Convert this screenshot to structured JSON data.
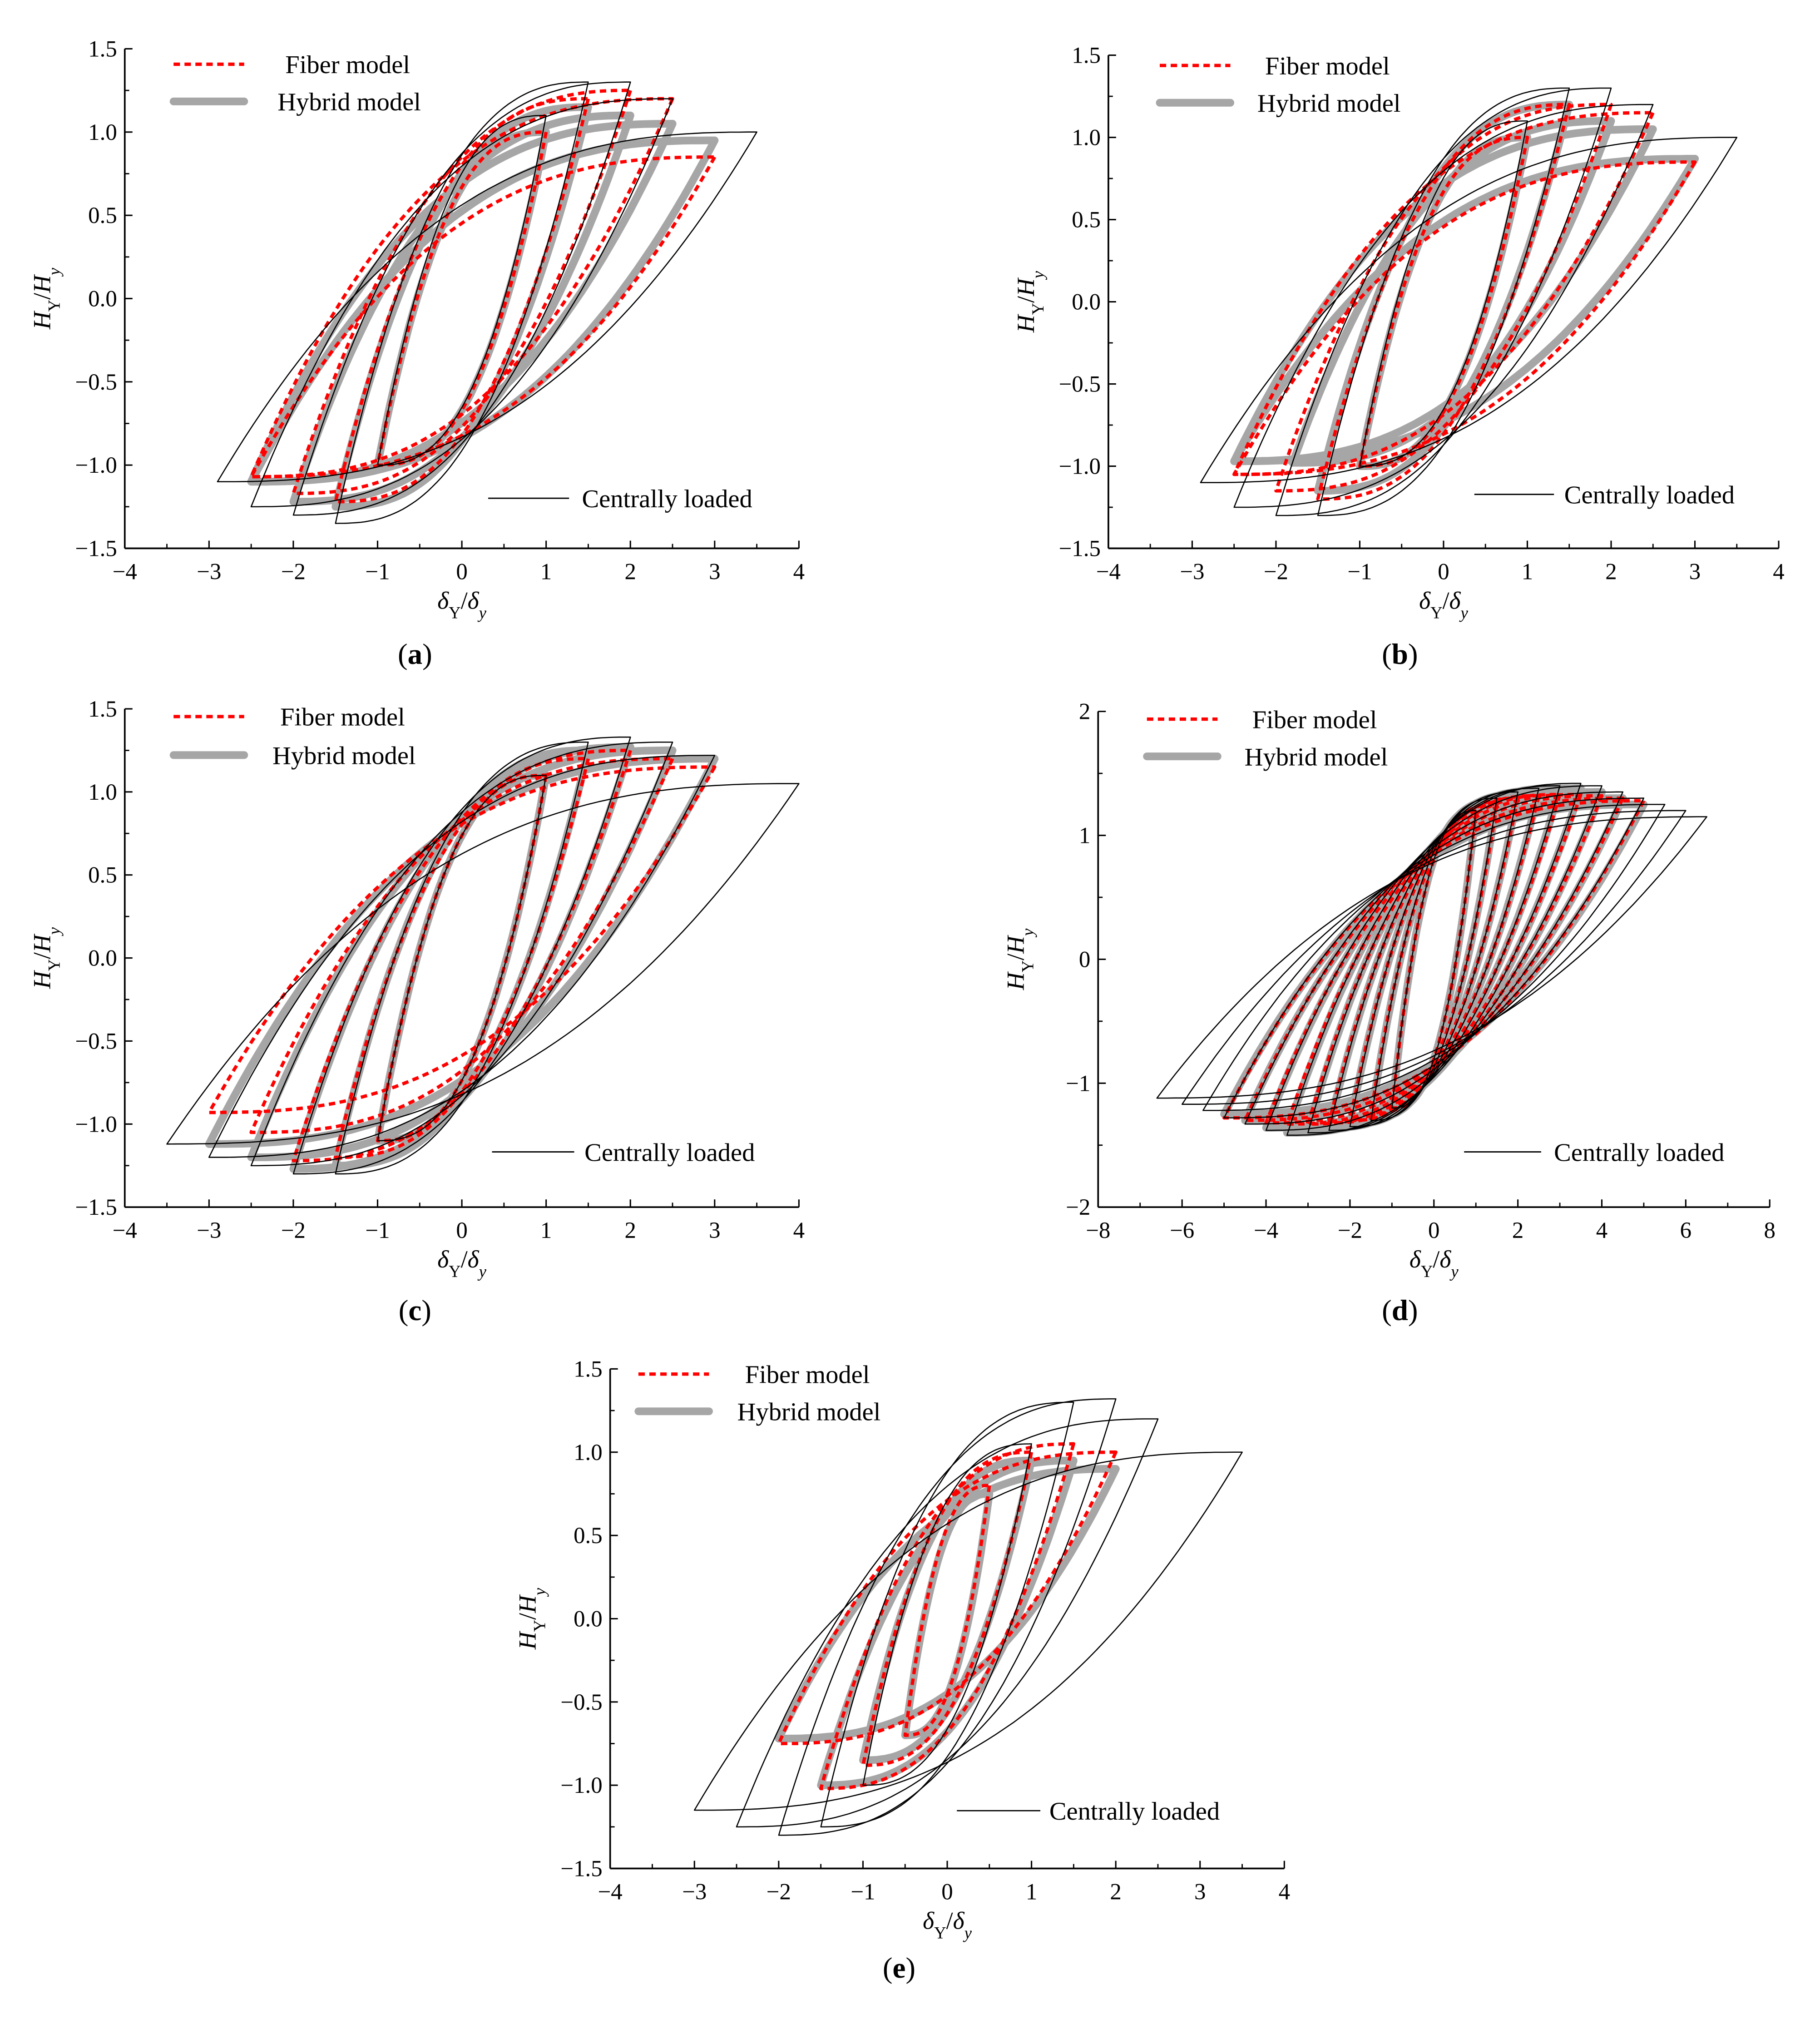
{
  "colors": {
    "fiber": "#ff0000",
    "hybrid": "#a6a6a6",
    "central": "#000000"
  },
  "legend": {
    "fiber": "Fiber model",
    "hybrid": "Hybrid model",
    "central": "Centrally loaded"
  },
  "axis_labels": {
    "x": {
      "main": "δ",
      "sub": "Y",
      "slash": "/",
      "main2": "δ",
      "sub2": "y"
    },
    "y": {
      "main": "H",
      "sub": "Y",
      "slash": "/",
      "main2": "H",
      "sub2": "y"
    }
  },
  "chart_data": [
    {
      "type": "line",
      "caption": "(a)",
      "xlim": [
        -4,
        4
      ],
      "ylim": [
        -1.5,
        1.5
      ],
      "xticks": [
        "−4",
        "−3",
        "−2",
        "−1",
        "0",
        "1",
        "2",
        "3",
        "4"
      ],
      "yticks": [
        "−1.5",
        "−1.0",
        "−0.5",
        "0.0",
        "0.5",
        "1.0",
        "1.5"
      ],
      "grid": false,
      "loop_format": "[positive peak displacement, positive peak force, negative peak displacement, negative peak force]",
      "series": [
        {
          "name": "Centrally loaded",
          "loops": [
            [
              1,
              1.1,
              -1,
              -1.0
            ],
            [
              1.5,
              1.3,
              -1.5,
              -1.35
            ],
            [
              2,
              1.3,
              -2,
              -1.3
            ],
            [
              2.5,
              1.2,
              -2.5,
              -1.25
            ],
            [
              3.5,
              1.0,
              -2.9,
              -1.1
            ]
          ]
        },
        {
          "name": "Fiber model",
          "loops": [
            [
              1,
              1.0,
              -1,
              -1.0
            ],
            [
              1.5,
              1.2,
              -1.5,
              -1.22
            ],
            [
              2,
              1.25,
              -2,
              -1.17
            ],
            [
              2.5,
              1.2,
              -2.5,
              -1.07
            ],
            [
              3,
              0.85,
              -2.5,
              -1.07
            ]
          ]
        },
        {
          "name": "Hybrid model",
          "loops": [
            [
              1,
              1.0,
              -1,
              -1.0
            ],
            [
              1.5,
              1.15,
              -1.5,
              -1.25
            ],
            [
              2,
              1.1,
              -2,
              -1.22
            ],
            [
              2.5,
              1.05,
              -2.5,
              -1.1
            ],
            [
              3,
              0.95,
              -2.5,
              -1.1
            ]
          ]
        }
      ]
    },
    {
      "type": "line",
      "caption": "(b)",
      "xlim": [
        -4,
        4
      ],
      "ylim": [
        -1.5,
        1.5
      ],
      "xticks": [
        "−4",
        "−3",
        "−2",
        "−1",
        "0",
        "1",
        "2",
        "3",
        "4"
      ],
      "yticks": [
        "−1.5",
        "−1.0",
        "−0.5",
        "0.0",
        "0.5",
        "1.0",
        "1.5"
      ],
      "grid": false,
      "series": [
        {
          "name": "Centrally loaded",
          "loops": [
            [
              1,
              1.1,
              -1,
              -1.0
            ],
            [
              1.5,
              1.3,
              -1.5,
              -1.3
            ],
            [
              2,
              1.3,
              -2,
              -1.3
            ],
            [
              2.5,
              1.2,
              -2.5,
              -1.25
            ],
            [
              3.5,
              1.0,
              -2.9,
              -1.1
            ]
          ]
        },
        {
          "name": "Fiber model",
          "loops": [
            [
              1,
              1.0,
              -1,
              -1.0
            ],
            [
              1.5,
              1.2,
              -1.5,
              -1.2
            ],
            [
              2,
              1.2,
              -2,
              -1.15
            ],
            [
              2.5,
              1.15,
              -2.5,
              -1.05
            ],
            [
              3,
              0.85,
              -2.5,
              -1.05
            ]
          ]
        },
        {
          "name": "Hybrid model",
          "loops": [
            [
              1,
              1.0,
              -1,
              -1.0
            ],
            [
              1.5,
              1.2,
              -1.5,
              -1.15
            ],
            [
              2,
              1.1,
              -1.8,
              -0.98
            ],
            [
              2.5,
              1.05,
              -2.5,
              -0.97
            ],
            [
              3,
              0.87,
              -2.5,
              -0.97
            ]
          ]
        }
      ]
    },
    {
      "type": "line",
      "caption": "(c)",
      "xlim": [
        -4,
        4
      ],
      "ylim": [
        -1.5,
        1.5
      ],
      "xticks": [
        "−4",
        "−3",
        "−2",
        "−1",
        "0",
        "1",
        "2",
        "3",
        "4"
      ],
      "yticks": [
        "−1.5",
        "−1.0",
        "−0.5",
        "0.0",
        "0.5",
        "1.0",
        "1.5"
      ],
      "grid": false,
      "series": [
        {
          "name": "Centrally loaded",
          "loops": [
            [
              1,
              1.1,
              -1,
              -1.1
            ],
            [
              1.5,
              1.3,
              -1.5,
              -1.3
            ],
            [
              2,
              1.33,
              -2,
              -1.3
            ],
            [
              2.5,
              1.3,
              -2.5,
              -1.25
            ],
            [
              3,
              1.22,
              -3,
              -1.2
            ],
            [
              4,
              1.05,
              -3.5,
              -1.12
            ]
          ]
        },
        {
          "name": "Fiber model",
          "loops": [
            [
              1,
              1.1,
              -1,
              -1.1
            ],
            [
              1.5,
              1.2,
              -1.5,
              -1.2
            ],
            [
              2,
              1.25,
              -2,
              -1.22
            ],
            [
              2.5,
              1.2,
              -2.5,
              -1.05
            ],
            [
              3,
              1.15,
              -3,
              -0.93
            ]
          ]
        },
        {
          "name": "Hybrid model",
          "loops": [
            [
              1,
              1.1,
              -1,
              -1.1
            ],
            [
              1.5,
              1.25,
              -1.5,
              -1.25
            ],
            [
              2,
              1.27,
              -2,
              -1.27
            ],
            [
              2.5,
              1.25,
              -2.5,
              -1.2
            ],
            [
              3,
              1.2,
              -3,
              -1.12
            ]
          ]
        }
      ]
    },
    {
      "type": "line",
      "caption": "(d)",
      "xlim": [
        -8,
        8
      ],
      "ylim": [
        -2,
        2
      ],
      "xticks": [
        "−8",
        "−6",
        "−4",
        "−2",
        "0",
        "2",
        "4",
        "6",
        "8"
      ],
      "yticks": [
        "−2",
        "−1",
        "0",
        "1",
        "2"
      ],
      "grid": false,
      "series": [
        {
          "name": "Centrally loaded",
          "loops": [
            [
              1,
              1.2,
              -1,
              -1.2
            ],
            [
              1.5,
              1.3,
              -1.5,
              -1.3
            ],
            [
              2,
              1.35,
              -2,
              -1.35
            ],
            [
              2.5,
              1.38,
              -2.5,
              -1.38
            ],
            [
              3,
              1.4,
              -3,
              -1.4
            ],
            [
              3.5,
              1.42,
              -3.5,
              -1.42
            ],
            [
              4,
              1.4,
              -4,
              -1.38
            ],
            [
              4.5,
              1.35,
              -4.5,
              -1.33
            ],
            [
              5,
              1.3,
              -5,
              -1.28
            ],
            [
              5.5,
              1.25,
              -5.5,
              -1.22
            ],
            [
              6,
              1.2,
              -6,
              -1.17
            ],
            [
              6.5,
              1.15,
              -6.6,
              -1.12
            ]
          ]
        },
        {
          "name": "Fiber model",
          "loops": [
            [
              1,
              1.2,
              -1,
              -1.2
            ],
            [
              1.5,
              1.25,
              -1.5,
              -1.25
            ],
            [
              2,
              1.3,
              -2,
              -1.3
            ],
            [
              2.5,
              1.32,
              -2.5,
              -1.32
            ],
            [
              3,
              1.33,
              -3,
              -1.33
            ],
            [
              3.5,
              1.33,
              -3.5,
              -1.33
            ],
            [
              4,
              1.32,
              -4,
              -1.32
            ],
            [
              4.5,
              1.3,
              -4.5,
              -1.3
            ],
            [
              5,
              1.28,
              -5,
              -1.28
            ]
          ]
        },
        {
          "name": "Hybrid model",
          "loops": [
            [
              1,
              1.2,
              -1,
              -1.2
            ],
            [
              1.5,
              1.28,
              -1.5,
              -1.28
            ],
            [
              2,
              1.33,
              -2,
              -1.33
            ],
            [
              2.5,
              1.36,
              -2.5,
              -1.36
            ],
            [
              3,
              1.38,
              -3,
              -1.38
            ],
            [
              3.5,
              1.38,
              -3.5,
              -1.4
            ],
            [
              4,
              1.35,
              -4,
              -1.36
            ],
            [
              4.5,
              1.3,
              -4.5,
              -1.3
            ],
            [
              5,
              1.25,
              -5,
              -1.25
            ]
          ]
        }
      ]
    },
    {
      "type": "line",
      "caption": "(e)",
      "xlim": [
        -4,
        4
      ],
      "ylim": [
        -1.5,
        1.5
      ],
      "xticks": [
        "−4",
        "−3",
        "−2",
        "−1",
        "0",
        "1",
        "2",
        "3",
        "4"
      ],
      "yticks": [
        "−1.5",
        "−1.0",
        "−0.5",
        "0.0",
        "0.5",
        "1.0",
        "1.5"
      ],
      "grid": false,
      "series": [
        {
          "name": "Centrally loaded",
          "loops": [
            [
              1,
              1.05,
              -1,
              -1.0
            ],
            [
              1.5,
              1.3,
              -1.5,
              -1.25
            ],
            [
              2,
              1.32,
              -2,
              -1.3
            ],
            [
              2.5,
              1.2,
              -2.5,
              -1.25
            ],
            [
              3.5,
              1.0,
              -3,
              -1.15
            ]
          ]
        },
        {
          "name": "Fiber model",
          "loops": [
            [
              0.5,
              0.8,
              -0.5,
              -0.7
            ],
            [
              1,
              1.0,
              -1,
              -0.88
            ],
            [
              1.5,
              1.05,
              -1.5,
              -1.02
            ],
            [
              2,
              1.0,
              -2,
              -0.75
            ]
          ]
        },
        {
          "name": "Hybrid model",
          "loops": [
            [
              0.5,
              0.75,
              -0.5,
              -0.7
            ],
            [
              1,
              0.95,
              -1,
              -0.85
            ],
            [
              1.5,
              0.95,
              -1.5,
              -1.0
            ],
            [
              2,
              0.9,
              -2,
              -0.72
            ]
          ]
        }
      ]
    }
  ]
}
